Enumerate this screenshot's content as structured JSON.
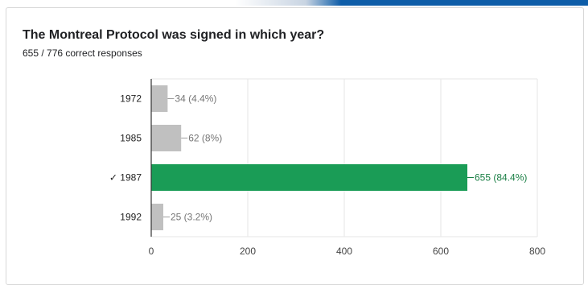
{
  "question": "The Montreal Protocol was signed in which year?",
  "response_summary": "655 / 776 correct responses",
  "colors": {
    "correct_bar": "#1a9c56",
    "incorrect_bar": "#c0c0c0",
    "correct_label": "#1a7f45",
    "incorrect_label": "#757575",
    "grid": "#e6e6e6",
    "axis": "#333333"
  },
  "chart_data": {
    "type": "bar",
    "orientation": "horizontal",
    "title": "The Montreal Protocol was signed in which year?",
    "categories": [
      "1972",
      "1985",
      "✓ 1987",
      "1992"
    ],
    "values": [
      34,
      62,
      655,
      25
    ],
    "value_labels": [
      "34 (4.4%)",
      "62 (8%)",
      "655 (84.4%)",
      "25 (3.2%)"
    ],
    "correct_index": 2,
    "xlim": [
      0,
      800
    ],
    "xticks": [
      0,
      200,
      400,
      600,
      800
    ],
    "grid": true,
    "legend": "none"
  }
}
